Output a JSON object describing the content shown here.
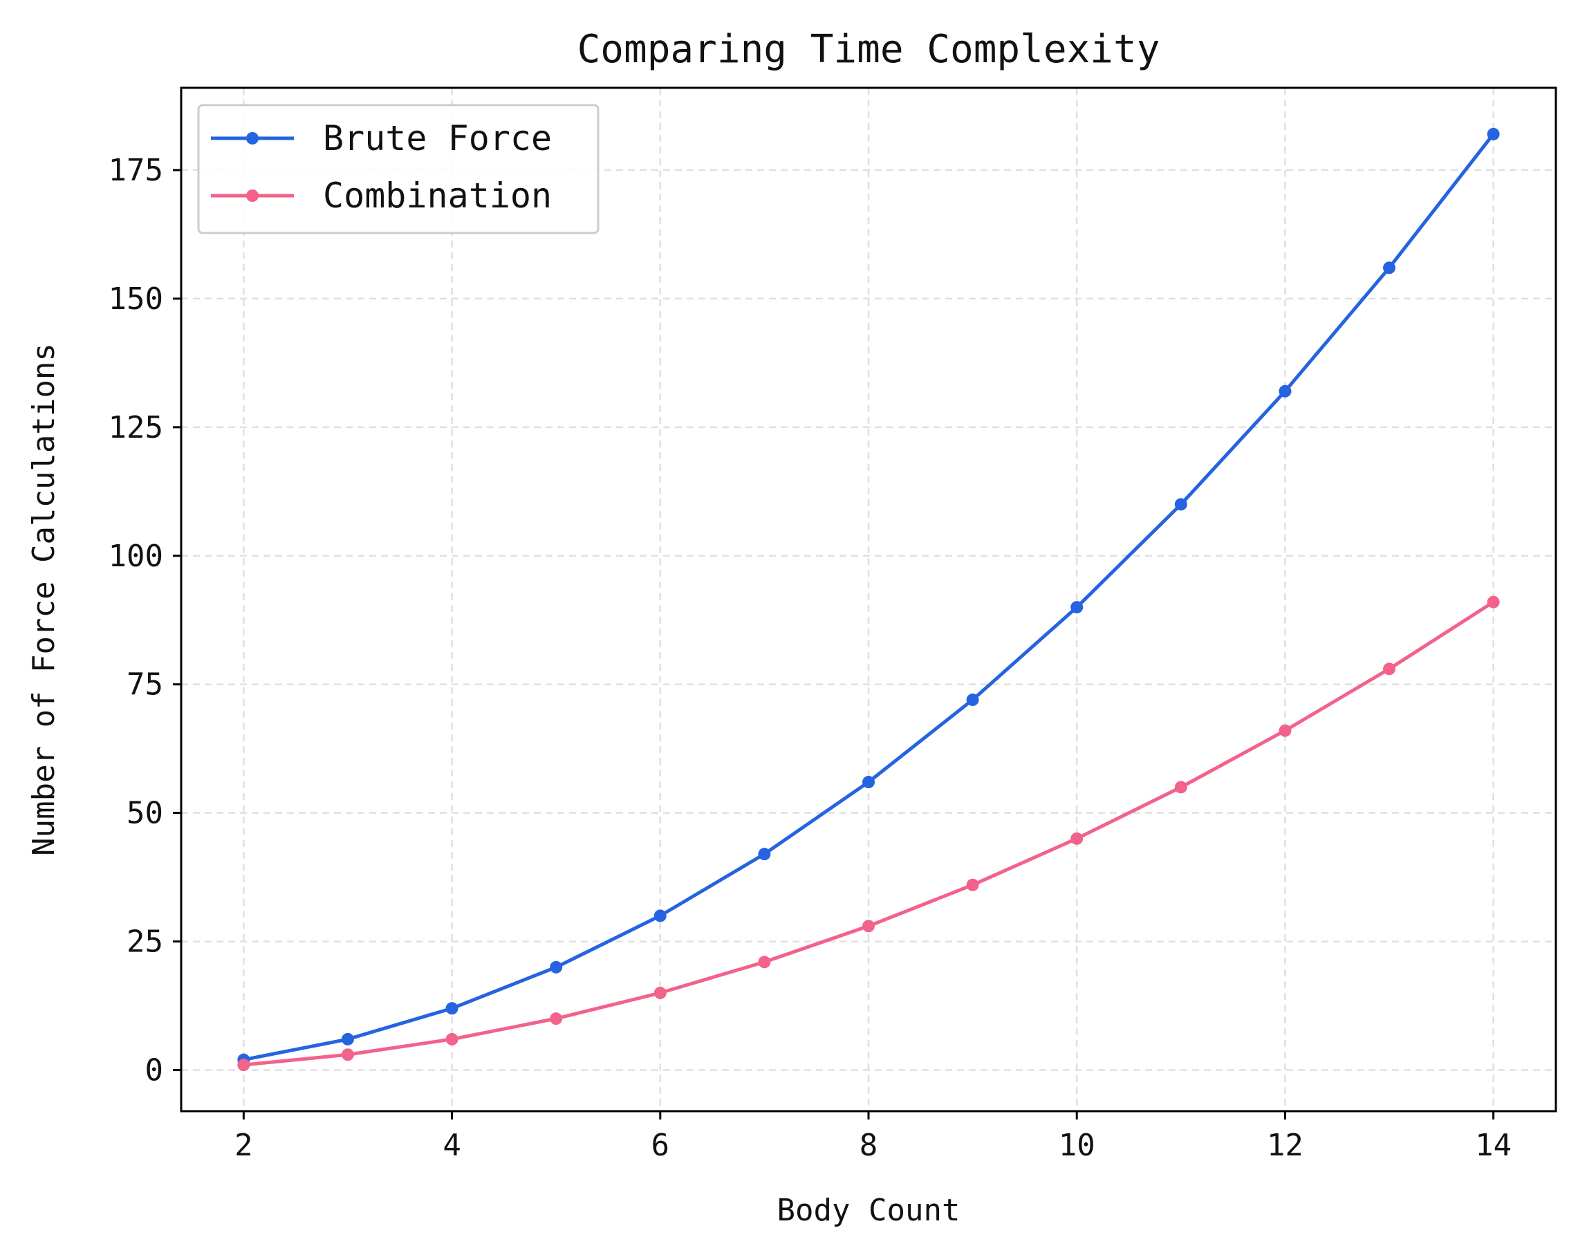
{
  "chart_data": {
    "type": "line",
    "title": "Comparing Time Complexity",
    "xlabel": "Body Count",
    "ylabel": "Number of Force Calculations",
    "x": [
      2,
      3,
      4,
      5,
      6,
      7,
      8,
      9,
      10,
      11,
      12,
      13,
      14
    ],
    "xlim": [
      1.4,
      14.6
    ],
    "ylim": [
      -8,
      191
    ],
    "xticks": [
      2,
      4,
      6,
      8,
      10,
      12,
      14
    ],
    "yticks": [
      0,
      25,
      50,
      75,
      100,
      125,
      150,
      175
    ],
    "grid": true,
    "legend_position": "top-left",
    "series": [
      {
        "name": "Brute Force",
        "color": "#2563e0",
        "values": [
          2,
          6,
          12,
          20,
          30,
          42,
          56,
          72,
          90,
          110,
          132,
          156,
          182
        ]
      },
      {
        "name": "Combination",
        "color": "#f2628a",
        "values": [
          1,
          3,
          6,
          10,
          15,
          21,
          28,
          36,
          45,
          55,
          66,
          78,
          91
        ]
      }
    ]
  }
}
